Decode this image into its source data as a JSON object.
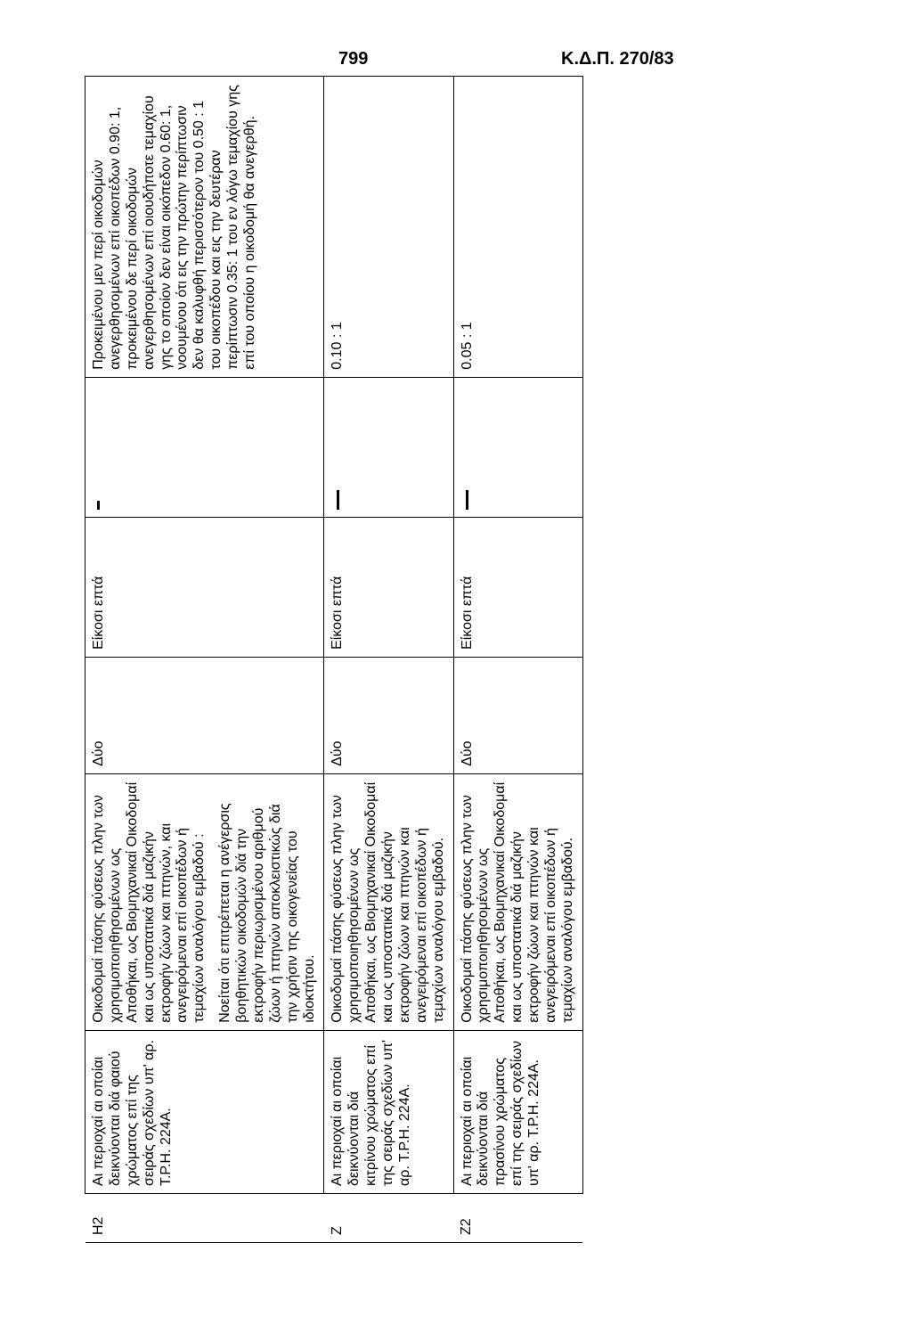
{
  "header": {
    "page_number": "799",
    "doc_ref": "Κ.Δ.Π. 270/83"
  },
  "columns": {
    "num1": "Δύο",
    "num2": "Είκοσι επτά"
  },
  "rows": [
    {
      "code": "Η2",
      "area": "Αι περιοχαί αι οποίαι δεικνύονται διά φαιού χρώματος επί της σειράς σχεδίων υπ' αρ. Τ.Ρ.Η. 224Α.",
      "desc_p1": "Οικοδομαί πάσης φύσεως πλην των χρησιμοποιηθησομένων ως Αποθήκαι, ως Βιομηχανικαί Οικοδομαί και ως υποστατικά διά μαζικήν εκτροφήν ζώων και πτηνών, και ανεγειρόμεναι επί οικοπέδων ή τεμαχίων αναλόγου εμβαδού :",
      "desc_p2": "Νοείται ότι επιτρέπεται η ανέγερσις βοηθητικών οικοδομών διά την εκτροφήν περιωρισμένου αριθμού ζώων ή πτηνών αποκλειστικώς διά την χρήσιν της οικογενείας του ιδιοκτήτου.",
      "ratio": "Προκειμένου μεν περί οικοδομών ανεγερθησομένων επί οικοπέδων 0.90: 1, προκειμένου δε περί οικοδομών ανεγερθησομένων επί οιουδήποτε τεμαχίου γης το οποίον δεν είναι οικόπεδον 0.60: 1, νοουμένου ότι εις την πρώτην περίπτωσιν δεν θα καλυφθή περισσότερον του 0.50 : 1 του οικοπέδου και εις την δευτέραν περίπτωσιν 0.35: 1 του εν λόγω τεμαχίου γης επί του οποίου η οικοδομή θα ανεγερθή."
    },
    {
      "code": "Ζ",
      "area": "Αι περιοχαί αι οποίαι δεικνύονται διά κιτρίνου χρώματος επί της σειράς σχεδίων υπ' αρ. Τ.Ρ.Η. 224Α.",
      "desc_p1": "Οικοδομαί πάσης φύσεως πλην των χρησιμοποιηθησομένων ως Αποθήκαι, ως Βιομηχανικαί Οικοδομαί και ως υποστατικά διά μαζικήν εκτροφήν ζώων και πτηνών και ανεγειρόμεναι επί οικοπέδων ή τεμαχίων αναλόγου εμβαδού.",
      "ratio": "0.10 : 1"
    },
    {
      "code": "Ζ2",
      "area": "Αι περιοχαί αι οποίαι δεικνύονται διά πρασίνου χρώματος επί της σειράς σχεδίων υπ' αρ. Τ.Ρ.Η. 224Α.",
      "desc_p1": "Οικοδομαί πάσης φύσεως πλην των χρησιμοποιηθησομένων ως Αποθήκαι, ως Βιομηχανικαί Οικοδομαί και ως υποστατικά διά μαζικήν εκτροφήν ζώων και πτηνών και ανεγειρόμεναι επί οικοπέδων ή τεμαχίων αναλόγου εμβαδού.",
      "ratio": "0.05 : 1"
    }
  ]
}
